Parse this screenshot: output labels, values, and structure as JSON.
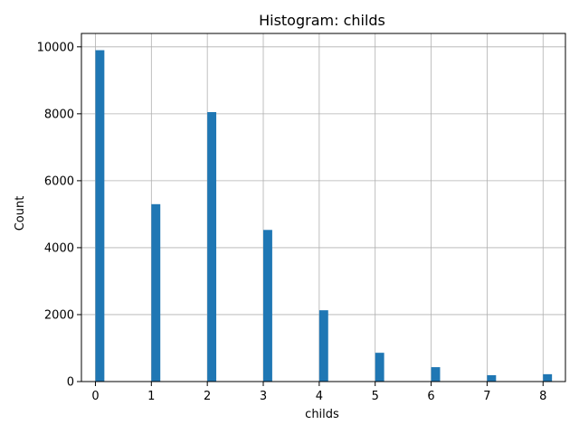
{
  "chart_data": {
    "type": "bar",
    "title": "Histogram: childs",
    "xlabel": "childs",
    "ylabel": "Count",
    "bins": [
      {
        "x": 0,
        "count": 9900
      },
      {
        "x": 1,
        "count": 5300
      },
      {
        "x": 2,
        "count": 8050
      },
      {
        "x": 3,
        "count": 4530
      },
      {
        "x": 4,
        "count": 2130
      },
      {
        "x": 5,
        "count": 860
      },
      {
        "x": 6,
        "count": 430
      },
      {
        "x": 7,
        "count": 190
      },
      {
        "x": 8,
        "count": 220
      }
    ],
    "bin_width": 0.16,
    "xlim": [
      -0.25,
      8.4
    ],
    "ylim": [
      0,
      10400
    ],
    "xticks": [
      0,
      1,
      2,
      3,
      4,
      5,
      6,
      7,
      8
    ],
    "yticks": [
      0,
      2000,
      4000,
      6000,
      8000,
      10000
    ],
    "grid": true,
    "bar_color": "#1f77b4"
  }
}
